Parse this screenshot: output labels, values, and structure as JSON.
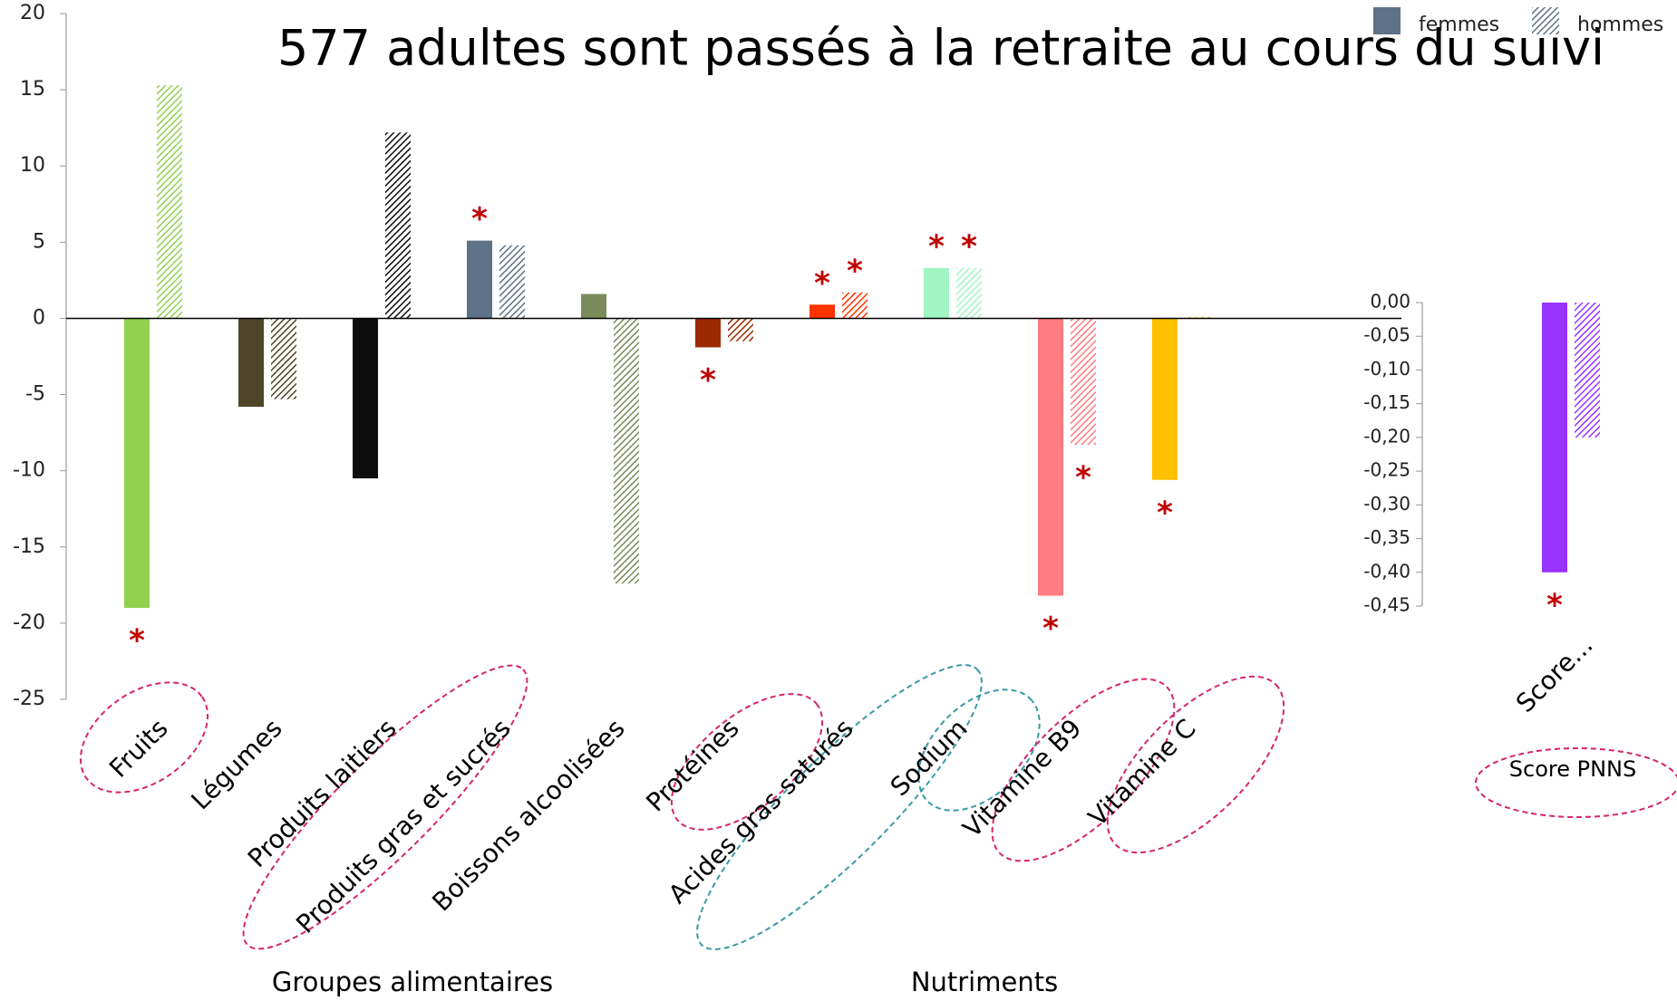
{
  "chart_data": [
    {
      "type": "bar",
      "title": "577 adultes sont passés à la retraite au cours du suivi",
      "categories": [
        "Fruits",
        "Légumes",
        "Produits laitiers",
        "Produits gras et sucrés",
        "Boissons alcoolisées",
        "Protéines",
        "Acides gras saturés",
        "Sodium",
        "Vitamine B9",
        "Vitamine C"
      ],
      "group_labels": [
        "Groupes alimentaires",
        "Nutriments"
      ],
      "series": [
        {
          "name": "femmes",
          "color": "#5f7186",
          "colors": [
            "#92d050",
            "#4f4528",
            "#0d0d0d",
            "#5f7186",
            "#7a8a5a",
            "#9c2a00",
            "#ff3300",
            "#a0f5c0",
            "#ff7c80",
            "#ffc000"
          ],
          "values": [
            -19,
            -5.8,
            -10.5,
            5.1,
            1.6,
            -1.9,
            0.9,
            3.3,
            -18.2,
            -10.6
          ],
          "annotations": [
            "*",
            null,
            null,
            "*",
            null,
            "*",
            "*",
            "*",
            "*",
            "*"
          ]
        },
        {
          "name": "hommes",
          "color": "#5f7186",
          "hatched": true,
          "colors": [
            "#92d050",
            "#4f4528",
            "#0d0d0d",
            "#5f7186",
            "#7a8a5a",
            "#9c2a00",
            "#ff3300",
            "#a0f5c0",
            "#ff7c80",
            "#ffc000"
          ],
          "values": [
            15.3,
            -5.3,
            12.2,
            4.8,
            -17.4,
            -1.5,
            1.7,
            3.3,
            -8.3,
            0.1
          ],
          "annotations": [
            null,
            null,
            null,
            null,
            null,
            null,
            "*",
            "*",
            "*",
            null
          ]
        }
      ],
      "annotation_color": "#c00000",
      "ylim": [
        -25,
        20
      ],
      "yticks": [
        -25,
        -20,
        -15,
        -10,
        -5,
        0,
        5,
        10,
        15,
        20
      ]
    },
    {
      "type": "bar",
      "categories": [
        "Score..."
      ],
      "annotation": "Score PNNS",
      "series": [
        {
          "color": "#9933ff",
          "values": [
            -0.4
          ],
          "annotations": [
            "*"
          ]
        },
        {
          "color": "#9933ff",
          "hatched": true,
          "values": [
            -0.2
          ],
          "annotations": [
            null
          ]
        }
      ],
      "ylim": [
        -0.45,
        0
      ],
      "yticks": [
        {
          "value": 0,
          "label": "0,00"
        },
        {
          "value": -0.05,
          "label": "-0,05"
        },
        {
          "value": -0.1,
          "label": "-0,10"
        },
        {
          "value": -0.15,
          "label": "-0,15"
        },
        {
          "value": -0.2,
          "label": "-0,20"
        },
        {
          "value": -0.25,
          "label": "-0,25"
        },
        {
          "value": -0.3,
          "label": "-0,30"
        },
        {
          "value": -0.35,
          "label": "-0,35"
        },
        {
          "value": -0.4,
          "label": "-0,40"
        },
        {
          "value": -0.45,
          "label": "-0,45"
        }
      ]
    }
  ]
}
